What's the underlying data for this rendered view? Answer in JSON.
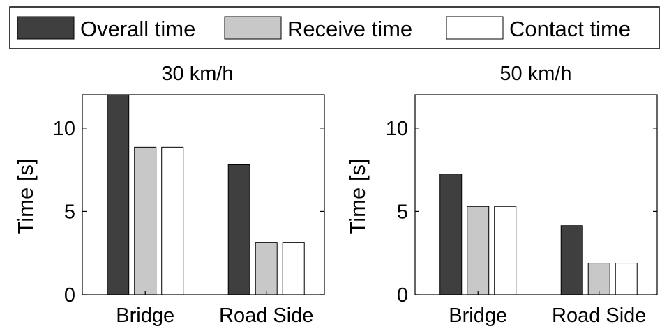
{
  "legend": {
    "items": [
      {
        "label": "Overall time",
        "color": "#3f3f3f"
      },
      {
        "label": "Receive time",
        "color": "#c8c8c8"
      },
      {
        "label": "Contact time",
        "color": "#ffffff"
      }
    ]
  },
  "chart_data": [
    {
      "type": "bar",
      "title": "30 km/h",
      "xlabel": "",
      "ylabel": "Time [s]",
      "categories": [
        "Bridge",
        "Road Side"
      ],
      "series": [
        {
          "name": "Overall time",
          "values": [
            12.0,
            7.8
          ]
        },
        {
          "name": "Receive time",
          "values": [
            8.85,
            3.15
          ]
        },
        {
          "name": "Contact time",
          "values": [
            8.85,
            3.15
          ]
        }
      ],
      "ylim": [
        0,
        12
      ],
      "yticks": [
        "0",
        "5",
        "10"
      ],
      "legend": "top"
    },
    {
      "type": "bar",
      "title": "50 km/h",
      "xlabel": "",
      "ylabel": "Time [s]",
      "categories": [
        "Bridge",
        "Road Side"
      ],
      "series": [
        {
          "name": "Overall time",
          "values": [
            7.25,
            4.15
          ]
        },
        {
          "name": "Receive time",
          "values": [
            5.3,
            1.9
          ]
        },
        {
          "name": "Contact time",
          "values": [
            5.3,
            1.9
          ]
        }
      ],
      "ylim": [
        0,
        12
      ],
      "yticks": [
        "0",
        "5",
        "10"
      ],
      "legend": "top"
    }
  ]
}
